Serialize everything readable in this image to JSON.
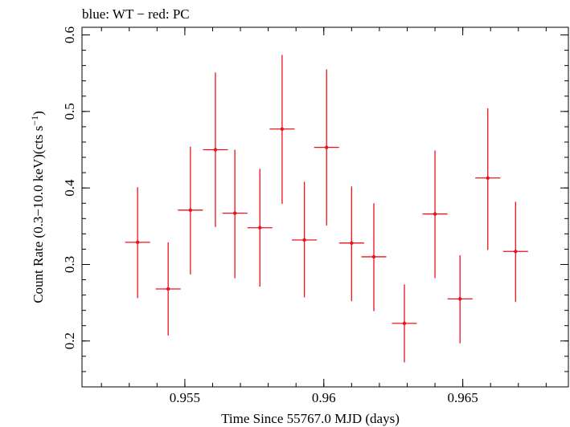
{
  "chart_data": {
    "type": "scatter",
    "title": "blue: WT − red: PC",
    "xlabel": "Time Since 55767.0 MJD (days)",
    "ylabel_main": "Count Rate (0.3−10.0 keV)(cts s",
    "ylabel_sup": "−1",
    "ylabel_close": ")",
    "xlim": [
      0.9513,
      0.9688
    ],
    "ylim": [
      0.14,
      0.61
    ],
    "xticks": [
      0.955,
      0.96,
      0.965
    ],
    "xtick_labels": [
      "0.955",
      "0.96",
      "0.965"
    ],
    "yticks": [
      0.2,
      0.3,
      0.4,
      0.5,
      0.6
    ],
    "ytick_labels": [
      "0.2",
      "0.3",
      "0.4",
      "0.5",
      "0.6"
    ],
    "x_minor_step": 0.001,
    "y_minor_step": 0.02,
    "grid": false,
    "series": [
      {
        "color": "#e8141b",
        "points": [
          {
            "x": 0.9533,
            "y": 0.329,
            "xerr": 0.00045,
            "ylo": 0.256,
            "yhi": 0.401
          },
          {
            "x": 0.9544,
            "y": 0.268,
            "xerr": 0.00045,
            "ylo": 0.207,
            "yhi": 0.329
          },
          {
            "x": 0.9552,
            "y": 0.371,
            "xerr": 0.00045,
            "ylo": 0.287,
            "yhi": 0.454
          },
          {
            "x": 0.9561,
            "y": 0.45,
            "xerr": 0.00045,
            "ylo": 0.349,
            "yhi": 0.551
          },
          {
            "x": 0.9568,
            "y": 0.367,
            "xerr": 0.00045,
            "ylo": 0.282,
            "yhi": 0.45
          },
          {
            "x": 0.9577,
            "y": 0.348,
            "xerr": 0.00045,
            "ylo": 0.271,
            "yhi": 0.425
          },
          {
            "x": 0.9585,
            "y": 0.477,
            "xerr": 0.00045,
            "ylo": 0.379,
            "yhi": 0.574
          },
          {
            "x": 0.9593,
            "y": 0.332,
            "xerr": 0.00045,
            "ylo": 0.257,
            "yhi": 0.408
          },
          {
            "x": 0.9601,
            "y": 0.453,
            "xerr": 0.00045,
            "ylo": 0.351,
            "yhi": 0.555
          },
          {
            "x": 0.961,
            "y": 0.328,
            "xerr": 0.00045,
            "ylo": 0.252,
            "yhi": 0.402
          },
          {
            "x": 0.9618,
            "y": 0.31,
            "xerr": 0.00045,
            "ylo": 0.239,
            "yhi": 0.38
          },
          {
            "x": 0.9629,
            "y": 0.223,
            "xerr": 0.00045,
            "ylo": 0.172,
            "yhi": 0.274
          },
          {
            "x": 0.964,
            "y": 0.366,
            "xerr": 0.00045,
            "ylo": 0.282,
            "yhi": 0.449
          },
          {
            "x": 0.9649,
            "y": 0.255,
            "xerr": 0.00045,
            "ylo": 0.197,
            "yhi": 0.312
          },
          {
            "x": 0.9659,
            "y": 0.413,
            "xerr": 0.00045,
            "ylo": 0.319,
            "yhi": 0.504
          },
          {
            "x": 0.9669,
            "y": 0.317,
            "xerr": 0.00045,
            "ylo": 0.251,
            "yhi": 0.382
          }
        ]
      }
    ]
  }
}
